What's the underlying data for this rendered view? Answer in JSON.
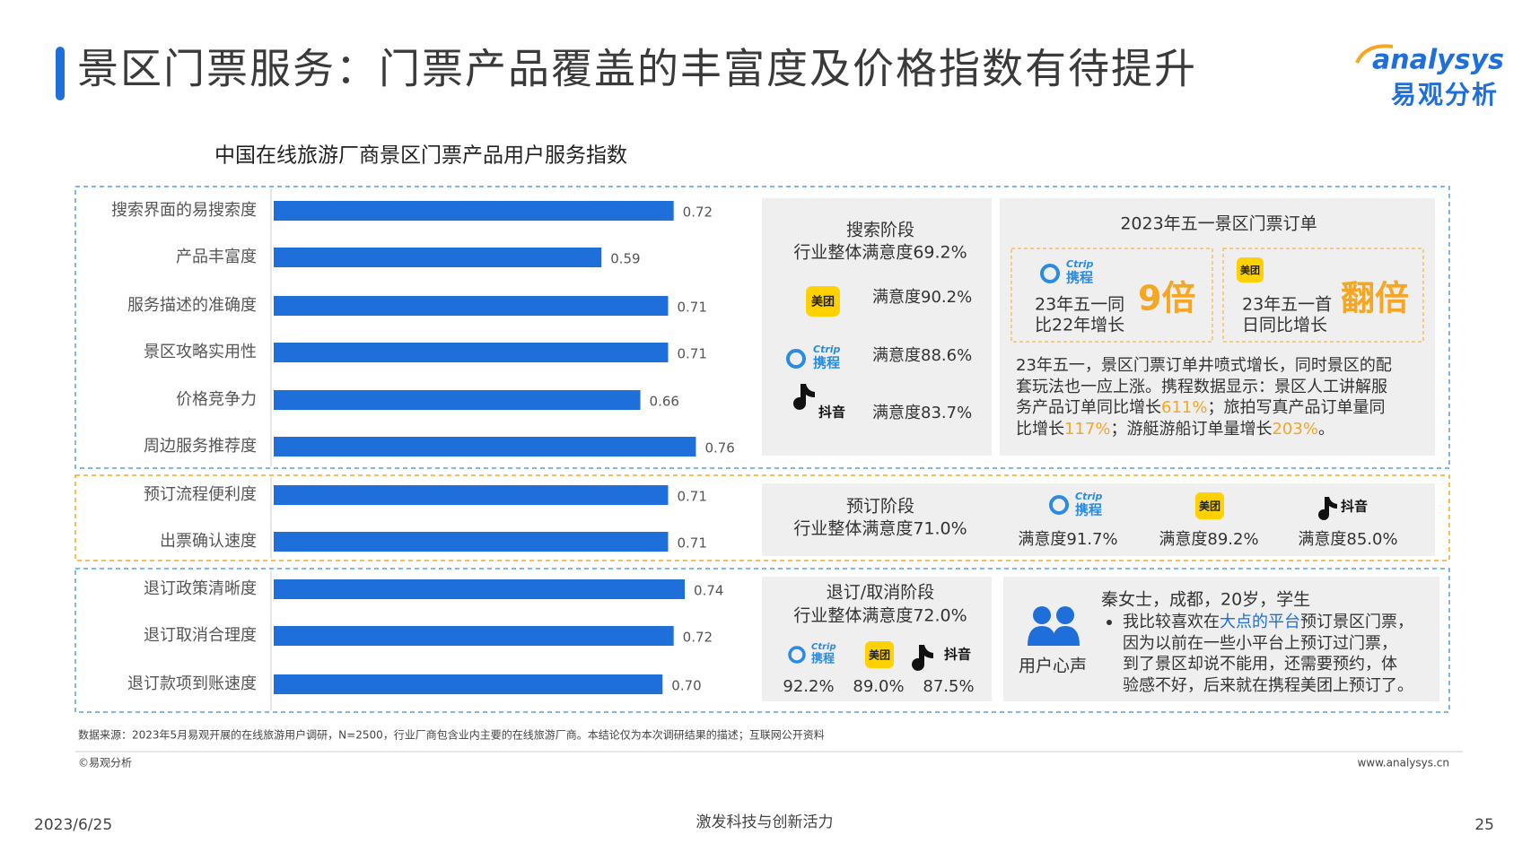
{
  "header": {
    "title": "景区门票服务：门票产品覆盖的丰富度及价格指数有待提升",
    "logo_en": "analysys",
    "logo_cn": "易观分析"
  },
  "chart_data": {
    "type": "bar",
    "orientation": "horizontal",
    "title": "中国在线旅游厂商景区门票产品用户服务指数",
    "categories": [
      "搜索界面的易搜索度",
      "产品丰富度",
      "服务描述的准确度",
      "景区攻略实用性",
      "价格竞争力",
      "周边服务推荐度",
      "预订流程便利度",
      "出票确认速度",
      "退订政策清晰度",
      "退订取消合理度",
      "退订款项到账速度"
    ],
    "values": [
      0.72,
      0.59,
      0.71,
      0.71,
      0.66,
      0.76,
      0.71,
      0.71,
      0.74,
      0.72,
      0.7
    ],
    "value_labels": [
      "0.72",
      "0.59",
      "0.71",
      "0.71",
      "0.66",
      "0.76",
      "0.71",
      "0.71",
      "0.74",
      "0.72",
      "0.70"
    ],
    "color": "#1e6fd9"
  },
  "logos": {
    "ctrip_en": "Ctrip",
    "ctrip": "携程",
    "meituan": "美团",
    "douyin": "抖音"
  },
  "search_stage": {
    "title": "搜索阶段",
    "overall": "行业整体满意度69.2%",
    "items": [
      "满意度90.2%",
      "满意度88.6%",
      "满意度83.7%"
    ]
  },
  "booking_stage": {
    "title": "预订阶段",
    "overall": "行业整体满意度71.0%",
    "items": [
      "满意度91.7%",
      "满意度89.2%",
      "满意度85.0%"
    ]
  },
  "refund_stage": {
    "title": "退订/取消阶段",
    "overall": "行业整体满意度72.0%",
    "items": [
      "92.2%",
      "89.0%",
      "87.5%"
    ]
  },
  "may_day": {
    "title": "2023年五一景区门票订单",
    "cards": [
      {
        "lines": [
          "23年五一同",
          "比22年增长"
        ],
        "highlight": "9倍"
      },
      {
        "lines": [
          "23年五一首",
          "日同比增长"
        ],
        "highlight": "翻倍"
      }
    ],
    "paragraph": [
      [
        {
          "text": "23年五一，景区门票订单井喷式增长，同时景区的配"
        }
      ],
      [
        {
          "text": "套玩法也一应上涨。携程数据显示：景区人工讲解服"
        }
      ],
      [
        {
          "text": "务产品订单同比增长"
        },
        {
          "text": "611%",
          "color": "#f5a623"
        },
        {
          "text": "；旅拍写真产品订单量同"
        }
      ],
      [
        {
          "text": "比增长"
        },
        {
          "text": "117%",
          "color": "#f5a623"
        },
        {
          "text": "；游艇游船订单量增长"
        },
        {
          "text": "203%",
          "color": "#f5a623"
        },
        {
          "text": "。"
        }
      ]
    ]
  },
  "user_voice": {
    "label": "用户心声",
    "person": "秦女士，成都，20岁，学生",
    "quote": [
      [
        {
          "text": "我比较喜欢在"
        },
        {
          "text": "大点的平台",
          "color": "#1e6fd9"
        },
        {
          "text": "预订景区门票，"
        }
      ],
      [
        {
          "text": "因为以前在一些小平台上预订过门票，"
        }
      ],
      [
        {
          "text": "到了景区却说不能用，还需要预约，体"
        }
      ],
      [
        {
          "text": "验感不好，后来就在携程美团上预订了。"
        }
      ]
    ]
  },
  "footer": {
    "source": "数据来源：2023年5月易观开展的在线旅游用户调研，N=2500，行业厂商包含业内主要的在线旅游厂商。本结论仅为本次调研结果的描述；互联网公开资料",
    "copyright": "©易观分析",
    "website": "www.analysys.cn",
    "date": "2023/6/25",
    "slogan": "激发科技与创新活力",
    "page": "25"
  }
}
